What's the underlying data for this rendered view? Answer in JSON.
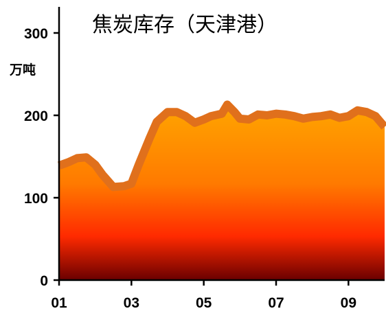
{
  "chart_data": {
    "type": "area",
    "title": "焦炭库存（天津港）",
    "ylabel": "万吨",
    "ylim": [
      0,
      300
    ],
    "yticks": [
      0,
      100,
      200,
      300
    ],
    "xticks": [
      "01",
      "03",
      "05",
      "07",
      "09"
    ],
    "xlim": [
      1,
      10
    ],
    "grid": false,
    "series": [
      {
        "x": [
          1.0,
          1.25,
          1.5,
          1.75,
          2.0,
          2.2,
          2.5,
          2.8,
          3.0,
          3.2,
          3.5,
          3.7,
          4.0,
          4.25,
          4.5,
          4.75,
          5.0,
          5.2,
          5.5,
          5.65,
          5.85,
          6.0,
          6.25,
          6.5,
          6.75,
          7.0,
          7.25,
          7.5,
          7.75,
          8.0,
          8.25,
          8.5,
          8.75,
          9.0,
          9.25,
          9.5,
          9.75,
          10.0
        ],
        "values": [
          139,
          143,
          148,
          149,
          140,
          128,
          113,
          114,
          117,
          140,
          172,
          192,
          204,
          204,
          199,
          191,
          195,
          199,
          202,
          213,
          204,
          196,
          195,
          201,
          200,
          202,
          201,
          199,
          196,
          198,
          199,
          201,
          197,
          199,
          206,
          204,
          199,
          186
        ]
      }
    ],
    "colors": {
      "line": "#e0701c",
      "fill_top": "#ffa500",
      "fill_mid": "#ff2a00",
      "fill_bottom": "#6a0000"
    }
  }
}
